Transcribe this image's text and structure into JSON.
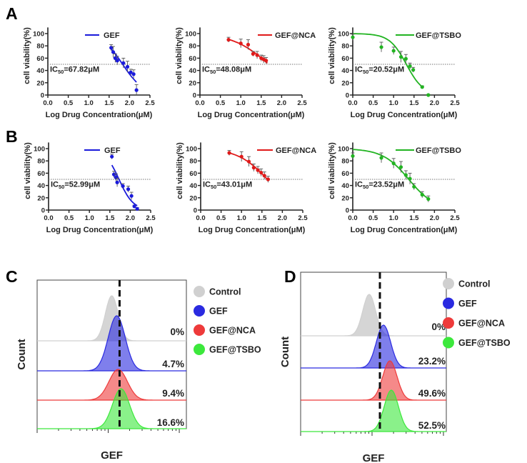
{
  "panel_labels": [
    "A",
    "B",
    "C",
    "D"
  ],
  "chart_data": [
    {
      "panel": "A",
      "type": "scatter",
      "series_name": "GEF",
      "color": "#1a1adb",
      "xlabel": "Log Drug Concentration(μM)",
      "ylabel": "cell viability(%)",
      "xlim": [
        0,
        2.5
      ],
      "ylim": [
        0,
        110
      ],
      "xticks": [
        "0.0",
        "0.5",
        "1.0",
        "1.5",
        "2.0",
        "2.5"
      ],
      "yticks": [
        "0",
        "20",
        "40",
        "60",
        "80",
        "100"
      ],
      "reference_line": 50,
      "ic50_label": {
        "prefix": "IC",
        "sub": "50",
        "value": "=67.82μM"
      },
      "ic50_uM": 67.82,
      "hill": 1.7,
      "x": [
        1.55,
        1.6,
        1.65,
        1.7,
        1.85,
        1.95,
        2.03,
        2.1,
        2.17
      ],
      "y": [
        77,
        70,
        60,
        56,
        52,
        46,
        37,
        34,
        8
      ],
      "err": [
        5,
        9,
        7,
        7,
        8,
        9,
        5,
        7,
        9
      ],
      "fit_range": [
        1.55,
        2.17
      ]
    },
    {
      "panel": "A",
      "type": "scatter",
      "series_name": "GEF@NCA",
      "color": "#e01a1a",
      "xlabel": "Log Drug Concentration(μM)",
      "ylabel": "cell viability(%)",
      "xlim": [
        0,
        2.5
      ],
      "ylim": [
        0,
        110
      ],
      "xticks": [
        "0.0",
        "0.5",
        "1.0",
        "1.5",
        "2.0",
        "2.5"
      ],
      "yticks": [
        "0",
        "20",
        "40",
        "60",
        "80",
        "100"
      ],
      "reference_line": 50,
      "ic50_label": {
        "prefix": "IC",
        "sub": "50",
        "value": "=48.08μM"
      },
      "ic50_uM": 48.08,
      "hill": 1.0,
      "x": [
        0.7,
        1.0,
        1.18,
        1.3,
        1.4,
        1.5,
        1.56,
        1.62
      ],
      "y": [
        90,
        84,
        82,
        67,
        65,
        60,
        58,
        56
      ],
      "err": [
        4,
        7,
        8,
        4,
        6,
        5,
        6,
        5
      ],
      "fit_range": [
        0.7,
        1.65
      ]
    },
    {
      "panel": "A",
      "type": "scatter",
      "series_name": "GEF@TSBO",
      "color": "#22b422",
      "xlabel": "Log Drug Concentration(μM)",
      "ylabel": "cell viability(%)",
      "xlim": [
        0,
        2.5
      ],
      "ylim": [
        0,
        110
      ],
      "xticks": [
        "0.0",
        "0.5",
        "1.0",
        "1.5",
        "2.0",
        "2.5"
      ],
      "yticks": [
        "0",
        "20",
        "40",
        "60",
        "80",
        "100"
      ],
      "reference_line": 50,
      "ic50_label": {
        "prefix": "IC",
        "sub": "50",
        "value": "=20.52μM"
      },
      "ic50_uM": 20.52,
      "hill": 2.1,
      "x": [
        0,
        0.7,
        1.0,
        1.18,
        1.3,
        1.4,
        1.48,
        1.7,
        1.85
      ],
      "y": [
        94,
        78,
        72,
        62,
        59,
        47,
        41,
        13,
        0
      ],
      "err": [
        5,
        8,
        6,
        9,
        7,
        5,
        4,
        2,
        1
      ],
      "fit_range": [
        0,
        1.72
      ]
    },
    {
      "panel": "B",
      "type": "scatter",
      "series_name": "GEF",
      "color": "#1a1adb",
      "xlabel": "Log Drug Concentration(μM)",
      "ylabel": "cell viability(%)",
      "xlim": [
        0,
        2.5
      ],
      "ylim": [
        0,
        110
      ],
      "xticks": [
        "0.0",
        "0.5",
        "1.0",
        "1.5",
        "2.0",
        "2.5"
      ],
      "yticks": [
        "0",
        "20",
        "40",
        "60",
        "80",
        "100"
      ],
      "reference_line": 50,
      "ic50_label": {
        "prefix": "IC",
        "sub": "50",
        "value": "=52.99μM"
      },
      "ic50_uM": 52.99,
      "hill": 2.5,
      "x": [
        1.55,
        1.6,
        1.65,
        1.68,
        1.82,
        1.95,
        2.03,
        2.1,
        2.17
      ],
      "y": [
        87,
        58,
        53,
        45,
        39,
        34,
        23,
        6,
        2
      ],
      "err": [
        4,
        5,
        6,
        7,
        4,
        5,
        6,
        2,
        2
      ],
      "fit_range": [
        1.55,
        2.17
      ]
    },
    {
      "panel": "B",
      "type": "scatter",
      "series_name": "GEF@NCA",
      "color": "#e01a1a",
      "xlabel": "Log Drug Concentration(μM)",
      "ylabel": "cell viability(%)",
      "xlim": [
        0,
        2.5
      ],
      "ylim": [
        0,
        110
      ],
      "xticks": [
        "0.0",
        "0.5",
        "1.0",
        "1.5",
        "2.0",
        "2.5"
      ],
      "yticks": [
        "0",
        "20",
        "40",
        "60",
        "80",
        "100"
      ],
      "reference_line": 50,
      "ic50_label": {
        "prefix": "IC",
        "sub": "50",
        "value": "=43.01μM"
      },
      "ic50_uM": 43.01,
      "hill": 1.2,
      "x": [
        0.7,
        1.0,
        1.18,
        1.3,
        1.4,
        1.48,
        1.56,
        1.65
      ],
      "y": [
        93,
        87,
        79,
        69,
        65,
        61,
        56,
        50
      ],
      "err": [
        4,
        8,
        8,
        6,
        6,
        6,
        6,
        5
      ],
      "fit_range": [
        0.7,
        1.65
      ]
    },
    {
      "panel": "B",
      "type": "scatter",
      "series_name": "GEF@TSBO",
      "color": "#22b422",
      "xlabel": "Log Drug Concentration(μM)",
      "ylabel": "cell viability(%)",
      "xlim": [
        0,
        2.5
      ],
      "ylim": [
        0,
        110
      ],
      "xticks": [
        "0.0",
        "0.5",
        "1.0",
        "1.5",
        "2.0",
        "2.5"
      ],
      "yticks": [
        "0",
        "20",
        "40",
        "60",
        "80",
        "100"
      ],
      "reference_line": 50,
      "ic50_label": {
        "prefix": "IC",
        "sub": "50",
        "value": "=23.52μM"
      },
      "ic50_uM": 23.52,
      "hill": 1.36,
      "x": [
        0,
        0.7,
        1.0,
        1.18,
        1.3,
        1.4,
        1.5,
        1.7,
        1.85
      ],
      "y": [
        88,
        85,
        76,
        70,
        57,
        51,
        38,
        25,
        18
      ],
      "err": [
        5,
        8,
        8,
        9,
        7,
        9,
        5,
        5,
        5
      ],
      "fit_range": [
        0,
        1.85
      ]
    },
    {
      "panel": "C",
      "type": "area",
      "xlabel": "GEF",
      "ylabel": "Count",
      "xscale": "log",
      "xlim_decades": [
        0,
        2.1
      ],
      "gate_position": 1.16,
      "series": [
        {
          "name": "Control",
          "color": "#d0d0d0",
          "percent": "0%",
          "center": 1.05,
          "sigma": 0.09,
          "peak": 63
        },
        {
          "name": "GEF",
          "color": "#2a2ae0",
          "percent": "4.7%",
          "center": 1.12,
          "sigma": 0.12,
          "peak": 77
        },
        {
          "name": "GEF@NCA",
          "color": "#ee3a3a",
          "percent": "9.4%",
          "center": 1.14,
          "sigma": 0.13,
          "peak": 43
        },
        {
          "name": "GEF@TSBO",
          "color": "#3ce83c",
          "percent": "16.6%",
          "center": 1.18,
          "sigma": 0.12,
          "peak": 56
        }
      ]
    },
    {
      "panel": "D",
      "type": "area",
      "xlabel": "GEF",
      "ylabel": "Count",
      "xscale": "log",
      "xlim_decades": [
        0,
        2.04
      ],
      "gate_position": 1.11,
      "series": [
        {
          "name": "Control",
          "color": "#d0d0d0",
          "percent": "0%",
          "center": 0.96,
          "sigma": 0.09,
          "peak": 58
        },
        {
          "name": "GEF",
          "color": "#2a2ae0",
          "percent": "23.2%",
          "center": 1.16,
          "sigma": 0.1,
          "peak": 60
        },
        {
          "name": "GEF@NCA",
          "color": "#ee3a3a",
          "percent": "49.6%",
          "center": 1.25,
          "sigma": 0.1,
          "peak": 55
        },
        {
          "name": "GEF@TSBO",
          "color": "#3ce83c",
          "percent": "52.5%",
          "center": 1.27,
          "sigma": 0.1,
          "peak": 58
        }
      ]
    }
  ]
}
